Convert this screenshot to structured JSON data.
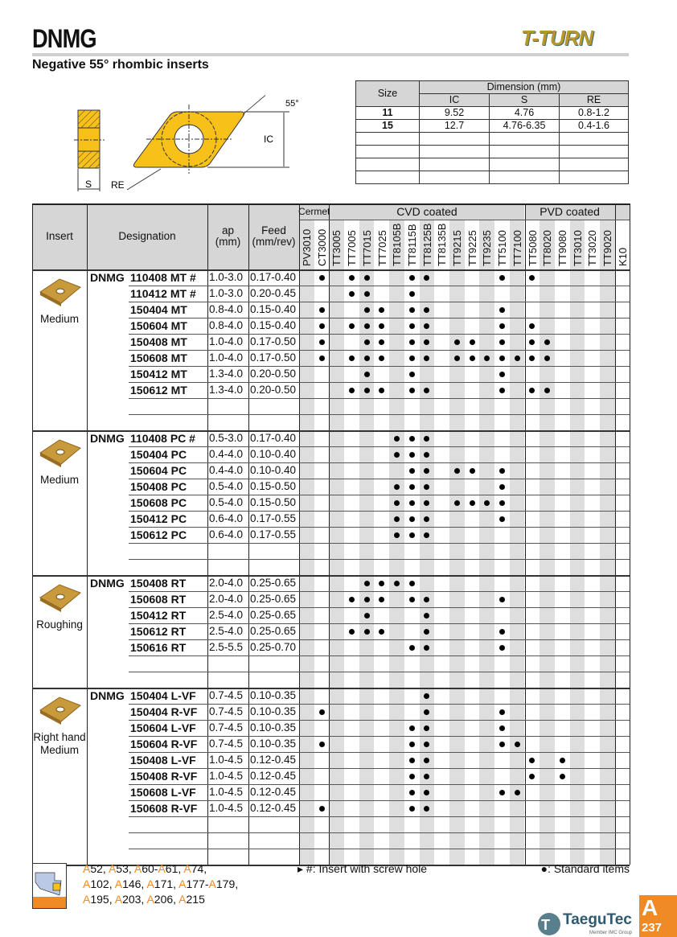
{
  "header": {
    "title": "DNMG",
    "subtitle": "Negative 55° rhombic inserts",
    "logo": "T-TURN"
  },
  "diagram": {
    "angle_label": "55°",
    "ic_label": "IC",
    "s_label": "S",
    "re_label": "RE",
    "insert_color": "#f7c11a"
  },
  "dimension_table": {
    "size_header": "Size",
    "group_header": "Dimension (mm)",
    "columns": [
      "IC",
      "S",
      "RE"
    ],
    "rows": [
      [
        "11",
        "9.52",
        "4.76",
        "0.8-1.2"
      ],
      [
        "15",
        "12.7",
        "4.76-6.35",
        "0.4-1.6"
      ],
      [
        "",
        "",
        "",
        ""
      ],
      [
        "",
        "",
        "",
        ""
      ],
      [
        "",
        "",
        "",
        ""
      ],
      [
        "",
        "",
        "",
        ""
      ]
    ]
  },
  "main_table": {
    "headers": {
      "insert": "Insert",
      "designation": "Designation",
      "ap": "ap\n(mm)",
      "feed": "Feed\n(mm/rev)"
    },
    "grade_groups": [
      {
        "label": "Cermet",
        "count": 2
      },
      {
        "label": "CVD coated",
        "count": 13
      },
      {
        "label": "PVD coated",
        "count": 6
      },
      {
        "label": "",
        "count": 1
      }
    ],
    "grades": [
      "PV3010",
      "CT3000",
      "TT3005",
      "TT7005",
      "TT7015",
      "TT7025",
      "TT8105B",
      "TT8115B",
      "TT8125B",
      "TT8135B",
      "TT9215",
      "TT9225",
      "TT9235",
      "TT5100",
      "TT7100",
      "TT5080",
      "TT8020",
      "TT9080",
      "TT3010",
      "TT3020",
      "TT9020",
      "K10"
    ],
    "sections": [
      {
        "insert_label": "Medium",
        "blank_rows": 2,
        "rows": [
          {
            "prefix": "DNMG",
            "code": "110408 MT #",
            "ap": "1.0-3.0",
            "feed": "0.17-0.40",
            "grades": [
              "CT3000",
              "TT7005",
              "TT7015",
              "TT8115B",
              "TT8125B",
              "TT5100",
              "TT5080"
            ]
          },
          {
            "prefix": "",
            "code": "110412 MT #",
            "ap": "1.0-3.0",
            "feed": "0.20-0.45",
            "grades": [
              "TT7005",
              "TT7015",
              "TT8115B"
            ]
          },
          {
            "prefix": "",
            "code": "150404 MT",
            "ap": "0.8-4.0",
            "feed": "0.15-0.40",
            "grades": [
              "CT3000",
              "TT7015",
              "TT7025",
              "TT8115B",
              "TT8125B",
              "TT5100"
            ]
          },
          {
            "prefix": "",
            "code": "150604 MT",
            "ap": "0.8-4.0",
            "feed": "0.15-0.40",
            "grades": [
              "CT3000",
              "TT7005",
              "TT7015",
              "TT7025",
              "TT8115B",
              "TT8125B",
              "TT5100",
              "TT5080"
            ]
          },
          {
            "prefix": "",
            "code": "150408 MT",
            "ap": "1.0-4.0",
            "feed": "0.17-0.50",
            "grades": [
              "CT3000",
              "TT7015",
              "TT7025",
              "TT8115B",
              "TT8125B",
              "TT9215",
              "TT9225",
              "TT5100",
              "TT5080",
              "TT8020"
            ]
          },
          {
            "prefix": "",
            "code": "150608 MT",
            "ap": "1.0-4.0",
            "feed": "0.17-0.50",
            "grades": [
              "CT3000",
              "TT7005",
              "TT7015",
              "TT7025",
              "TT8115B",
              "TT8125B",
              "TT9215",
              "TT9225",
              "TT9235",
              "TT5100",
              "TT7100",
              "TT5080",
              "TT8020"
            ]
          },
          {
            "prefix": "",
            "code": "150412 MT",
            "ap": "1.3-4.0",
            "feed": "0.20-0.50",
            "grades": [
              "TT7015",
              "TT8115B",
              "TT5100"
            ]
          },
          {
            "prefix": "",
            "code": "150612 MT",
            "ap": "1.3-4.0",
            "feed": "0.20-0.50",
            "grades": [
              "TT7005",
              "TT7015",
              "TT7025",
              "TT8115B",
              "TT8125B",
              "TT5100",
              "TT5080",
              "TT8020"
            ]
          }
        ]
      },
      {
        "insert_label": "Medium",
        "blank_rows": 2,
        "rows": [
          {
            "prefix": "DNMG",
            "code": "110408 PC #",
            "ap": "0.5-3.0",
            "feed": "0.17-0.40",
            "grades": [
              "TT8105B",
              "TT8115B",
              "TT8125B"
            ]
          },
          {
            "prefix": "",
            "code": "150404 PC",
            "ap": "0.4-4.0",
            "feed": "0.10-0.40",
            "grades": [
              "TT8105B",
              "TT8115B",
              "TT8125B"
            ]
          },
          {
            "prefix": "",
            "code": "150604 PC",
            "ap": "0.4-4.0",
            "feed": "0.10-0.40",
            "grades": [
              "TT8115B",
              "TT8125B",
              "TT9215",
              "TT9225",
              "TT5100"
            ]
          },
          {
            "prefix": "",
            "code": "150408 PC",
            "ap": "0.5-4.0",
            "feed": "0.15-0.50",
            "grades": [
              "TT8105B",
              "TT8115B",
              "TT8125B",
              "TT5100"
            ]
          },
          {
            "prefix": "",
            "code": "150608 PC",
            "ap": "0.5-4.0",
            "feed": "0.15-0.50",
            "grades": [
              "TT8105B",
              "TT8115B",
              "TT8125B",
              "TT9215",
              "TT9225",
              "TT9235",
              "TT5100"
            ]
          },
          {
            "prefix": "",
            "code": "150412 PC",
            "ap": "0.6-4.0",
            "feed": "0.17-0.55",
            "grades": [
              "TT8105B",
              "TT8115B",
              "TT8125B",
              "TT5100"
            ]
          },
          {
            "prefix": "",
            "code": "150612 PC",
            "ap": "0.6-4.0",
            "feed": "0.17-0.55",
            "grades": [
              "TT8105B",
              "TT8115B",
              "TT8125B"
            ]
          }
        ]
      },
      {
        "insert_label": "Roughing",
        "blank_rows": 2,
        "rows": [
          {
            "prefix": "DNMG",
            "code": "150408 RT",
            "ap": "2.0-4.0",
            "feed": "0.25-0.65",
            "grades": [
              "TT7015",
              "TT7025",
              "TT8105B",
              "TT8115B"
            ]
          },
          {
            "prefix": "",
            "code": "150608 RT",
            "ap": "2.0-4.0",
            "feed": "0.25-0.65",
            "grades": [
              "TT7005",
              "TT7015",
              "TT7025",
              "TT8115B",
              "TT8125B",
              "TT5100"
            ]
          },
          {
            "prefix": "",
            "code": "150412 RT",
            "ap": "2.5-4.0",
            "feed": "0.25-0.65",
            "grades": [
              "TT7015",
              "TT8125B"
            ]
          },
          {
            "prefix": "",
            "code": "150612 RT",
            "ap": "2.5-4.0",
            "feed": "0.25-0.65",
            "grades": [
              "TT7005",
              "TT7015",
              "TT7025",
              "TT8125B",
              "TT5100"
            ]
          },
          {
            "prefix": "",
            "code": "150616 RT",
            "ap": "2.5-5.5",
            "feed": "0.25-0.70",
            "grades": [
              "TT8115B",
              "TT8125B",
              "TT5100"
            ]
          }
        ]
      },
      {
        "insert_label": "Right hand\nMedium",
        "blank_rows": 3,
        "rows": [
          {
            "prefix": "DNMG",
            "code": "150404 L-VF",
            "ap": "0.7-4.5",
            "feed": "0.10-0.35",
            "grades": [
              "TT8125B"
            ]
          },
          {
            "prefix": "",
            "code": "150404 R-VF",
            "ap": "0.7-4.5",
            "feed": "0.10-0.35",
            "grades": [
              "CT3000",
              "TT8125B",
              "TT5100"
            ]
          },
          {
            "prefix": "",
            "code": "150604 L-VF",
            "ap": "0.7-4.5",
            "feed": "0.10-0.35",
            "grades": [
              "TT8115B",
              "TT8125B",
              "TT5100"
            ]
          },
          {
            "prefix": "",
            "code": "150604 R-VF",
            "ap": "0.7-4.5",
            "feed": "0.10-0.35",
            "grades": [
              "CT3000",
              "TT8115B",
              "TT8125B",
              "TT5100",
              "TT7100"
            ]
          },
          {
            "prefix": "",
            "code": "150408 L-VF",
            "ap": "1.0-4.5",
            "feed": "0.12-0.45",
            "grades": [
              "TT8115B",
              "TT8125B",
              "TT5080",
              "TT9080"
            ]
          },
          {
            "prefix": "",
            "code": "150408 R-VF",
            "ap": "1.0-4.5",
            "feed": "0.12-0.45",
            "grades": [
              "TT8115B",
              "TT8125B",
              "TT5080",
              "TT9080"
            ]
          },
          {
            "prefix": "",
            "code": "150608 L-VF",
            "ap": "1.0-4.5",
            "feed": "0.12-0.45",
            "grades": [
              "TT8115B",
              "TT8125B",
              "TT5100",
              "TT7100"
            ]
          },
          {
            "prefix": "",
            "code": "150608 R-VF",
            "ap": "1.0-4.5",
            "feed": "0.12-0.45",
            "grades": [
              "CT3000",
              "TT8115B",
              "TT8125B"
            ]
          }
        ]
      }
    ]
  },
  "footer": {
    "references": [
      [
        "A",
        "52, "
      ],
      [
        "A",
        "53, "
      ],
      [
        "A",
        "60-"
      ],
      [
        "A",
        "61, "
      ],
      [
        "A",
        "74,"
      ],
      null,
      [
        "A",
        "102, "
      ],
      [
        "A",
        "146, "
      ],
      [
        "A",
        "171, "
      ],
      [
        "A",
        "177-"
      ],
      [
        "A",
        "179,"
      ],
      null,
      [
        "A",
        "195, "
      ],
      [
        "A",
        "203, "
      ],
      [
        "A",
        "206, "
      ],
      [
        "A",
        "215"
      ]
    ],
    "screw_note": "▸ #: Insert with screw hole",
    "standard_note": "●: Standard items",
    "section_letter": "A",
    "page_number": "237",
    "brand": "TaeguTec",
    "brand_sub": "Member IMC Group",
    "accent_color": "#f08a24"
  }
}
